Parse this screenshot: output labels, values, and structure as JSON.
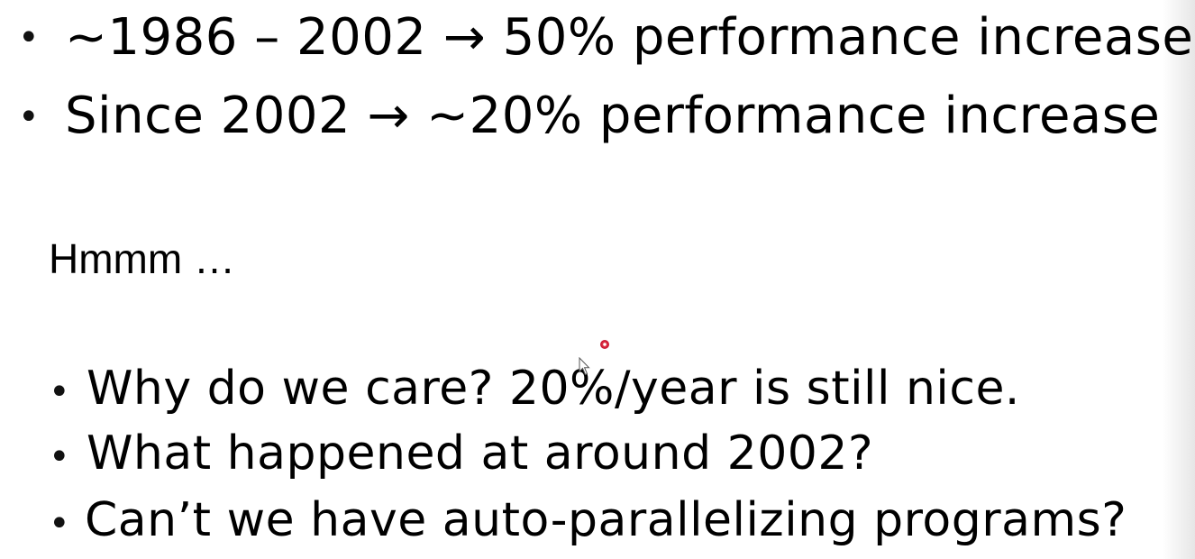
{
  "slide": {
    "top_bullets": [
      {
        "bullet": "•",
        "text": "~1986 – 2002 → 50% performance increase"
      },
      {
        "bullet": "•",
        "text": "Since 2002 → ~20% performance increase"
      }
    ],
    "hmmm": "Hmmm …",
    "bottom_bullets": [
      {
        "bullet": "•",
        "text": "Why do we care? 20%/year is still nice."
      },
      {
        "bullet": "•",
        "text": "What happened at around 2002?"
      },
      {
        "bullet": "•",
        "text": "Can’t we have auto-parallelizing programs?"
      }
    ]
  },
  "colors": {
    "text": "#000000",
    "background": "#ffffff",
    "laser_pointer": "#c8102e"
  },
  "icons": {
    "pointer": "laser-pointer-dot",
    "cursor": "mouse-cursor-arrow"
  }
}
